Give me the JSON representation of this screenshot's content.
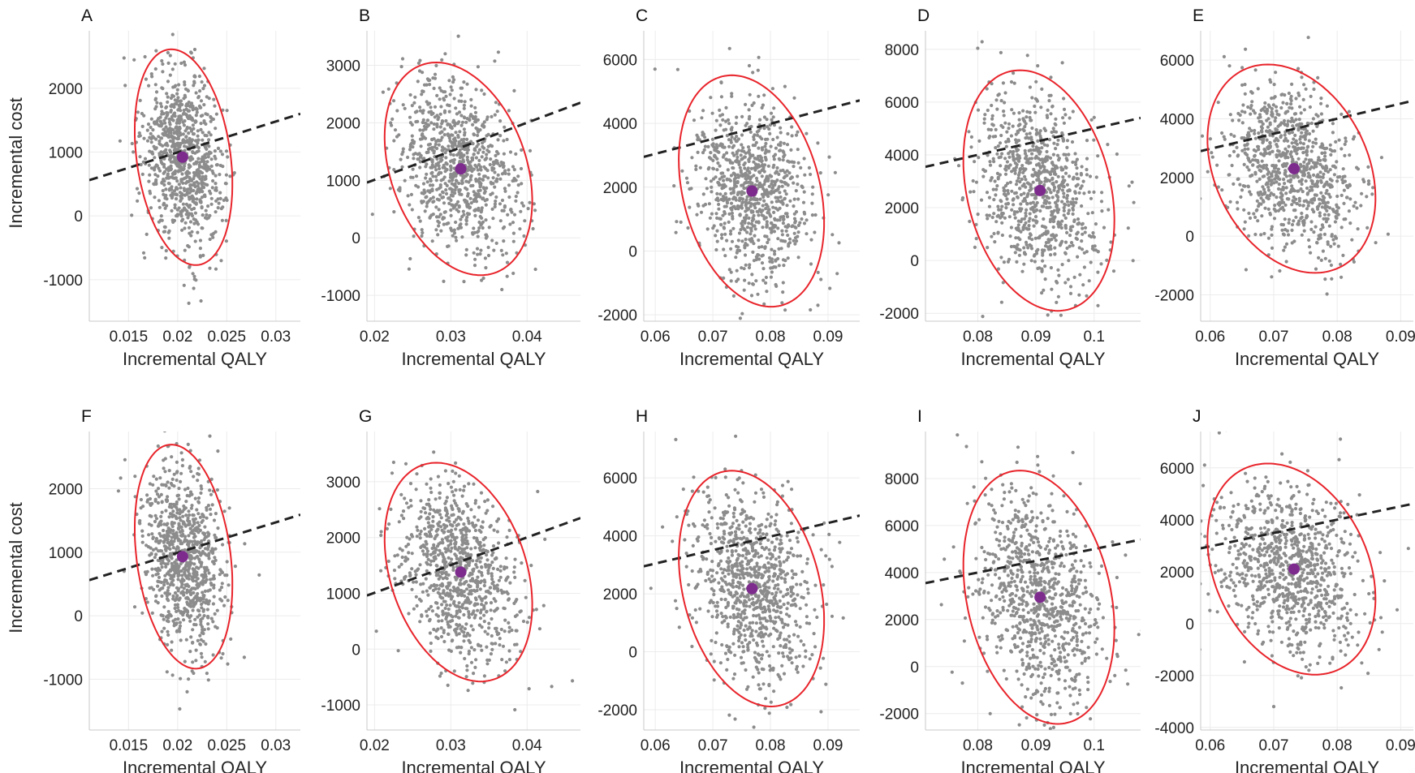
{
  "chart_data": [
    {
      "panel": "A",
      "type": "scatter",
      "xlabel": "Incremental QALY",
      "ylabel": "Incremental cost",
      "xlim": [
        0.011,
        0.0325
      ],
      "ylim": [
        -1650,
        2900
      ],
      "xticks": [
        0.015,
        0.02,
        0.025,
        0.03
      ],
      "xticklabels": [
        "0.015",
        "0.02",
        "0.025",
        "0.03"
      ],
      "yticks": [
        -1000,
        0,
        1000,
        2000
      ],
      "yticklabels": [
        "-1000",
        "0",
        "1000",
        "2000"
      ],
      "mean": {
        "x": 0.0205,
        "y": 920
      },
      "ellipse": {
        "cx": 0.0206,
        "cy": 920,
        "sx": 0.00203,
        "sy": 690,
        "r": -0.25,
        "k": 2.45
      },
      "threshold": {
        "x0": 0.011,
        "y0": 560,
        "x1": 0.0325,
        "y1": 1600
      },
      "grid": true
    },
    {
      "panel": "B",
      "type": "scatter",
      "xlabel": "Incremental QALY",
      "ylabel": "",
      "xlim": [
        0.019,
        0.047
      ],
      "ylim": [
        -1450,
        3600
      ],
      "xticks": [
        0.02,
        0.03,
        0.04
      ],
      "xticklabels": [
        "0.02",
        "0.03",
        "0.04"
      ],
      "yticks": [
        -1000,
        0,
        1000,
        2000,
        3000
      ],
      "yticklabels": [
        "-1000",
        "0",
        "1000",
        "2000",
        "3000"
      ],
      "mean": {
        "x": 0.0313,
        "y": 1200
      },
      "ellipse": {
        "cx": 0.031,
        "cy": 1200,
        "sx": 0.00395,
        "sy": 755,
        "r": -0.3,
        "k": 2.45
      },
      "threshold": {
        "x0": 0.019,
        "y0": 960,
        "x1": 0.047,
        "y1": 2350
      },
      "grid": true
    },
    {
      "panel": "C",
      "type": "scatter",
      "xlabel": "Incremental QALY",
      "ylabel": "",
      "xlim": [
        0.058,
        0.0955
      ],
      "ylim": [
        -2200,
        6900
      ],
      "xticks": [
        0.06,
        0.07,
        0.08,
        0.09
      ],
      "xticklabels": [
        "0.06",
        "0.07",
        "0.08",
        "0.09"
      ],
      "yticks": [
        -2000,
        0,
        2000,
        4000,
        6000
      ],
      "yticklabels": [
        "-2000",
        "0",
        "2000",
        "4000",
        "6000"
      ],
      "mean": {
        "x": 0.0768,
        "y": 1880
      },
      "ellipse": {
        "cx": 0.0767,
        "cy": 1880,
        "sx": 0.00515,
        "sy": 1480,
        "r": -0.27,
        "k": 2.45
      },
      "threshold": {
        "x0": 0.058,
        "y0": 2950,
        "x1": 0.0955,
        "y1": 4720
      },
      "grid": true
    },
    {
      "panel": "D",
      "type": "scatter",
      "xlabel": "Incremental QALY",
      "ylabel": "",
      "xlim": [
        0.071,
        0.108
      ],
      "ylim": [
        -2300,
        8700
      ],
      "xticks": [
        0.08,
        0.09,
        0.1
      ],
      "xticklabels": [
        "0.08",
        "0.09",
        "0.1"
      ],
      "yticks": [
        -2000,
        0,
        2000,
        4000,
        6000,
        8000
      ],
      "yticklabels": [
        "-2000",
        "0",
        "2000",
        "4000",
        "6000",
        "8000"
      ],
      "mean": {
        "x": 0.0907,
        "y": 2650
      },
      "ellipse": {
        "cx": 0.0905,
        "cy": 2650,
        "sx": 0.0053,
        "sy": 1860,
        "r": -0.25,
        "k": 2.45
      },
      "threshold": {
        "x0": 0.071,
        "y0": 3550,
        "x1": 0.108,
        "y1": 5400
      },
      "grid": true
    },
    {
      "panel": "E",
      "type": "scatter",
      "xlabel": "Incremental QALY",
      "ylabel": "",
      "xlim": [
        0.0585,
        0.092
      ],
      "ylim": [
        -2900,
        7000
      ],
      "xticks": [
        0.06,
        0.07,
        0.08,
        0.09
      ],
      "xticklabels": [
        "0.06",
        "0.07",
        "0.08",
        "0.09"
      ],
      "yticks": [
        -2000,
        0,
        2000,
        4000,
        6000
      ],
      "yticklabels": [
        "-2000",
        "0",
        "2000",
        "4000",
        "6000"
      ],
      "mean": {
        "x": 0.0732,
        "y": 2300
      },
      "ellipse": {
        "cx": 0.0728,
        "cy": 2300,
        "sx": 0.0054,
        "sy": 1450,
        "r": -0.28,
        "k": 2.45
      },
      "threshold": {
        "x0": 0.0585,
        "y0": 2900,
        "x1": 0.092,
        "y1": 4620
      },
      "grid": true
    },
    {
      "panel": "F",
      "type": "scatter",
      "xlabel": "Incremental QALY",
      "ylabel": "Incremental cost",
      "xlim": [
        0.011,
        0.0325
      ],
      "ylim": [
        -1800,
        2900
      ],
      "xticks": [
        0.015,
        0.02,
        0.025,
        0.03
      ],
      "xticklabels": [
        "0.015",
        "0.02",
        "0.025",
        "0.03"
      ],
      "yticks": [
        -1000,
        0,
        1000,
        2000
      ],
      "yticklabels": [
        "-1000",
        "0",
        "1000",
        "2000"
      ],
      "mean": {
        "x": 0.0205,
        "y": 930
      },
      "ellipse": {
        "cx": 0.0206,
        "cy": 930,
        "sx": 0.00203,
        "sy": 720,
        "r": -0.25,
        "k": 2.45
      },
      "threshold": {
        "x0": 0.011,
        "y0": 560,
        "x1": 0.0325,
        "y1": 1590
      },
      "grid": true
    },
    {
      "panel": "G",
      "type": "scatter",
      "xlabel": "Incremental QALY",
      "ylabel": "",
      "xlim": [
        0.019,
        0.047
      ],
      "ylim": [
        -1450,
        3900
      ],
      "xticks": [
        0.02,
        0.03,
        0.04
      ],
      "xticklabels": [
        "0.02",
        "0.03",
        "0.04"
      ],
      "yticks": [
        -1000,
        0,
        1000,
        2000,
        3000
      ],
      "yticklabels": [
        "-1000",
        "0",
        "1000",
        "2000",
        "3000"
      ],
      "mean": {
        "x": 0.0313,
        "y": 1380
      },
      "ellipse": {
        "cx": 0.031,
        "cy": 1380,
        "sx": 0.00395,
        "sy": 800,
        "r": -0.3,
        "k": 2.45
      },
      "threshold": {
        "x0": 0.019,
        "y0": 960,
        "x1": 0.047,
        "y1": 2350
      },
      "grid": true
    },
    {
      "panel": "H",
      "type": "scatter",
      "xlabel": "Incremental QALY",
      "ylabel": "",
      "xlim": [
        0.058,
        0.0955
      ],
      "ylim": [
        -2700,
        7600
      ],
      "xticks": [
        0.06,
        0.07,
        0.08,
        0.09
      ],
      "xticklabels": [
        "0.06",
        "0.07",
        "0.08",
        "0.09"
      ],
      "yticks": [
        -2000,
        0,
        2000,
        4000,
        6000
      ],
      "yticklabels": [
        "-2000",
        "0",
        "2000",
        "4000",
        "6000"
      ],
      "mean": {
        "x": 0.0768,
        "y": 2180
      },
      "ellipse": {
        "cx": 0.0767,
        "cy": 2180,
        "sx": 0.00515,
        "sy": 1660,
        "r": -0.27,
        "k": 2.45
      },
      "threshold": {
        "x0": 0.058,
        "y0": 2950,
        "x1": 0.0955,
        "y1": 4700
      },
      "grid": true
    },
    {
      "panel": "I",
      "type": "scatter",
      "xlabel": "Incremental QALY",
      "ylabel": "",
      "xlim": [
        0.071,
        0.108
      ],
      "ylim": [
        -2700,
        10000
      ],
      "xticks": [
        0.08,
        0.09,
        0.1
      ],
      "xticklabels": [
        "0.08",
        "0.09",
        "0.1"
      ],
      "yticks": [
        -2000,
        0,
        2000,
        4000,
        6000,
        8000
      ],
      "yticklabels": [
        "-2000",
        "0",
        "2000",
        "4000",
        "6000",
        "8000"
      ],
      "mean": {
        "x": 0.0907,
        "y": 2950
      },
      "ellipse": {
        "cx": 0.0905,
        "cy": 2950,
        "sx": 0.0053,
        "sy": 2200,
        "r": -0.25,
        "k": 2.45
      },
      "threshold": {
        "x0": 0.071,
        "y0": 3550,
        "x1": 0.108,
        "y1": 5400
      },
      "grid": true
    },
    {
      "panel": "J",
      "type": "scatter",
      "xlabel": "Incremental QALY",
      "ylabel": "",
      "xlim": [
        0.0585,
        0.092
      ],
      "ylim": [
        -4100,
        7400
      ],
      "xticks": [
        0.06,
        0.07,
        0.08,
        0.09
      ],
      "xticklabels": [
        "0.06",
        "0.07",
        "0.08",
        "0.09"
      ],
      "yticks": [
        -4000,
        -2000,
        0,
        2000,
        4000,
        6000
      ],
      "yticklabels": [
        "-4000",
        "-2000",
        "0",
        "2000",
        "4000",
        "6000"
      ],
      "mean": {
        "x": 0.0732,
        "y": 2100
      },
      "ellipse": {
        "cx": 0.0728,
        "cy": 2100,
        "sx": 0.0054,
        "sy": 1660,
        "r": -0.28,
        "k": 2.45
      },
      "threshold": {
        "x0": 0.0585,
        "y0": 2900,
        "x1": 0.092,
        "y1": 4620
      },
      "grid": true
    }
  ],
  "style": {
    "point_color": "#8c8c8c",
    "mean_color": "#7e2b8e",
    "ellipse_color": "#e8242b",
    "threshold_color": "#222222",
    "grid_color": "#ececec",
    "axis_color": "#c8c8c8"
  }
}
